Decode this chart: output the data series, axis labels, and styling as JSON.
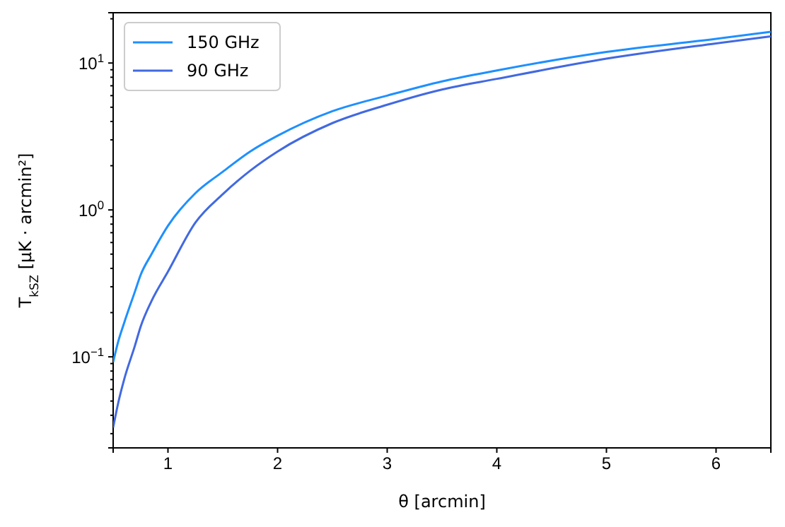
{
  "chart_data": {
    "type": "line",
    "xlabel": "θ [arcmin]",
    "ylabel": "T$_{kSZ}$ [μK · arcmin²]",
    "x": [
      0.5,
      0.55,
      0.6,
      0.7,
      0.75,
      0.85,
      1,
      1.25,
      1.5,
      1.75,
      2,
      2.5,
      3,
      3.5,
      4,
      5,
      6,
      6.5
    ],
    "series": [
      {
        "name": "150 GHz",
        "color": "#1e90ff",
        "values": [
          0.092,
          0.13,
          0.17,
          0.28,
          0.36,
          0.5,
          0.78,
          1.3,
          1.82,
          2.5,
          3.2,
          4.7,
          6.0,
          7.5,
          8.9,
          11.9,
          14.6,
          16.3
        ]
      },
      {
        "name": "90 GHz",
        "color": "#4169e1",
        "values": [
          0.033,
          0.05,
          0.07,
          0.12,
          0.16,
          0.24,
          0.38,
          0.82,
          1.28,
          1.85,
          2.5,
          3.9,
          5.2,
          6.6,
          7.8,
          10.7,
          13.6,
          15.2
        ]
      }
    ],
    "xlim": [
      0.5,
      6.5
    ],
    "xticks": [
      1,
      2,
      3,
      4,
      5,
      6
    ],
    "ylim": [
      0.024,
      22
    ],
    "log": true,
    "yticks": [
      {
        "value": 0.03,
        "label": null
      },
      {
        "value": 0.04,
        "label": null
      },
      {
        "value": 0.05,
        "label": null
      },
      {
        "value": 0.06,
        "label": null
      },
      {
        "value": 0.07,
        "label": null
      },
      {
        "value": 0.08,
        "label": null
      },
      {
        "value": 0.09,
        "label": null
      },
      {
        "value": 0.1,
        "label": "10$^{−1}$"
      },
      {
        "value": 0.2,
        "label": null
      },
      {
        "value": 0.3,
        "label": null
      },
      {
        "value": 0.4,
        "label": null
      },
      {
        "value": 0.5,
        "label": null
      },
      {
        "value": 0.6,
        "label": null
      },
      {
        "value": 0.7,
        "label": null
      },
      {
        "value": 0.8,
        "label": null
      },
      {
        "value": 0.9,
        "label": null
      },
      {
        "value": 1,
        "label": "10$^{0}$"
      },
      {
        "value": 2,
        "label": null
      },
      {
        "value": 3,
        "label": null
      },
      {
        "value": 4,
        "label": null
      },
      {
        "value": 5,
        "label": null
      },
      {
        "value": 6,
        "label": null
      },
      {
        "value": 7,
        "label": null
      },
      {
        "value": 8,
        "label": null
      },
      {
        "value": 9,
        "label": null
      },
      {
        "value": 10,
        "label": "10$^{1}$"
      },
      {
        "value": 20,
        "label": null
      }
    ],
    "legend": "top left",
    "grid": false,
    "line_style": "solid",
    "marker": "none"
  }
}
